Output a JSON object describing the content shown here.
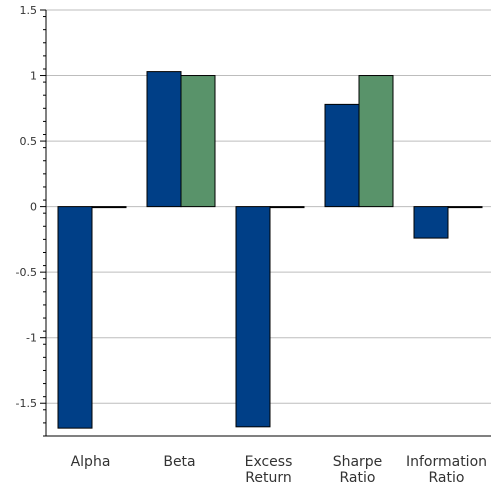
{
  "chart_data": {
    "type": "bar",
    "categories": [
      [
        "Alpha"
      ],
      [
        "Beta"
      ],
      [
        "Excess",
        "Return"
      ],
      [
        "Sharpe",
        "Ratio"
      ],
      [
        "Information",
        "Ratio"
      ]
    ],
    "series": [
      {
        "values": [
          -1.69,
          1.03,
          -1.68,
          0.78,
          -0.24
        ],
        "color": "#003f87"
      },
      {
        "values": [
          0,
          1.0,
          0,
          1.0,
          0
        ],
        "color": "#59936a"
      }
    ],
    "y_ticks": [
      "1.5",
      "1",
      "0.5",
      "0",
      "-0.5",
      "-1",
      "-1.5"
    ],
    "ylim": [
      -1.75,
      1.5
    ],
    "grid": true,
    "title": "",
    "xlabel": "",
    "ylabel": ""
  }
}
